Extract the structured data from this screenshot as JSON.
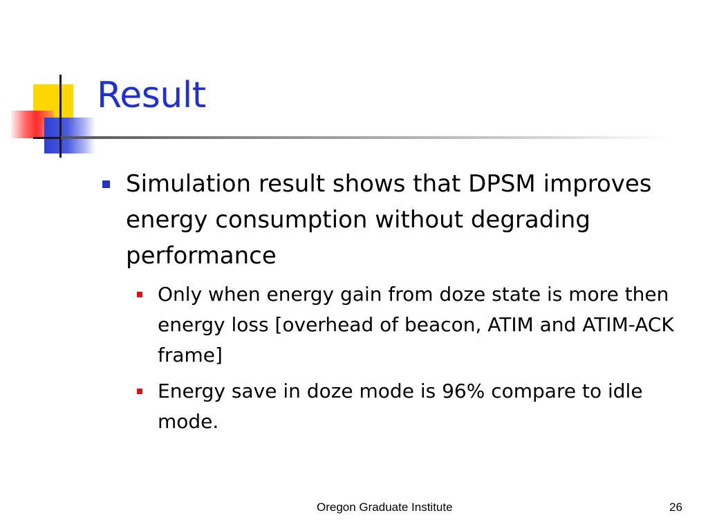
{
  "slide": {
    "title": "Result",
    "bullets": [
      {
        "text": "Simulation result shows that DPSM improves energy consumption without degrading performance",
        "sub_bullets": [
          "Only when energy gain from doze state is more then energy loss [overhead of beacon, ATIM and ATIM-ACK frame]",
          "Energy save in doze mode is 96% compare to idle mode."
        ]
      }
    ],
    "footer": {
      "organization": "Oregon Graduate Institute",
      "page_number": "26"
    }
  },
  "colors": {
    "title": "#1f2fd6",
    "level1_bullet": "#2233cc",
    "level2_bullet": "#e01010",
    "deco_yellow": "#ffd700",
    "deco_red": "#ff2a2a",
    "deco_blue": "#2f3fd0"
  }
}
